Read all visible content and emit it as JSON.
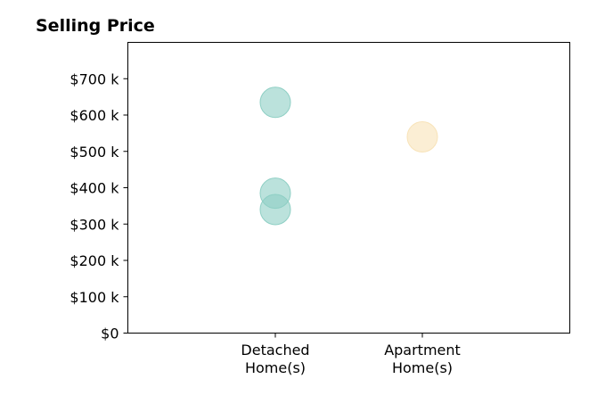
{
  "chart_data": {
    "type": "scatter",
    "title": "Selling Price",
    "xlabel": "",
    "ylabel": "",
    "categories": [
      [
        "Detached",
        "Home(s)"
      ],
      [
        "Apartment",
        "Home(s)"
      ]
    ],
    "ylim": [
      0,
      800000
    ],
    "yticks": [
      {
        "value": 0,
        "label": "$0"
      },
      {
        "value": 100000,
        "label": "$100 k"
      },
      {
        "value": 200000,
        "label": "$200 k"
      },
      {
        "value": 300000,
        "label": "$300 k"
      },
      {
        "value": 400000,
        "label": "$400 k"
      },
      {
        "value": 500000,
        "label": "$500 k"
      },
      {
        "value": 600000,
        "label": "$600 k"
      },
      {
        "value": 700000,
        "label": "$700 k"
      }
    ],
    "points": [
      {
        "category": 0,
        "value": 635000,
        "color": "#8ecfc4"
      },
      {
        "category": 0,
        "value": 385000,
        "color": "#8ecfc4"
      },
      {
        "category": 0,
        "value": 340000,
        "color": "#8ecfc4"
      },
      {
        "category": 1,
        "value": 540000,
        "color": "#f8e3b8"
      }
    ],
    "grid": false,
    "legend": "none"
  }
}
